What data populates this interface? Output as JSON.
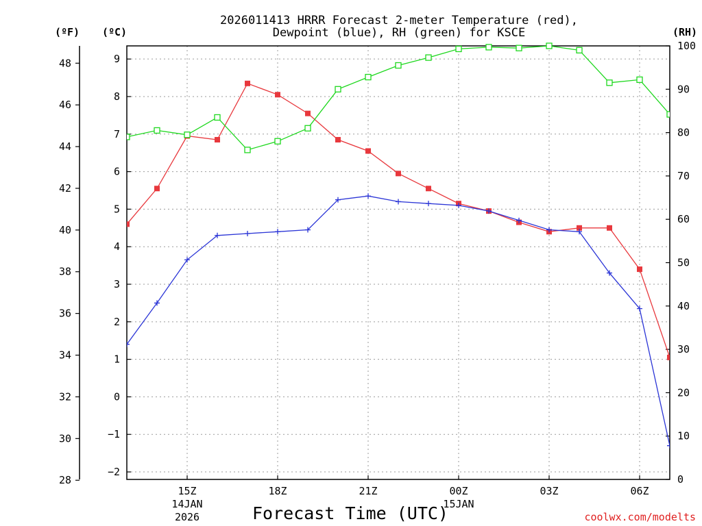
{
  "chart_data": {
    "type": "line",
    "title_line1": "2026011413 HRRR Forecast 2-meter Temperature (red),",
    "title_line2": "Dewpoint (blue), RH (green) for KSCE",
    "xlabel": "Forecast Time (UTC)",
    "credit": "coolwx.com/modelts",
    "units": {
      "fahrenheit": "(ºF)",
      "celsius": "(ºC)",
      "rh": "(RH)"
    },
    "x_hours": [
      13,
      14,
      15,
      16,
      17,
      18,
      19,
      20,
      21,
      22,
      23,
      24,
      25,
      26,
      27,
      28,
      29,
      30,
      31
    ],
    "xlim": [
      13,
      31
    ],
    "x_ticks": [
      {
        "hour": 15,
        "label": "15Z",
        "date1": "14JAN",
        "date2": "2026"
      },
      {
        "hour": 18,
        "label": "18Z",
        "date1": "",
        "date2": ""
      },
      {
        "hour": 21,
        "label": "21Z",
        "date1": "",
        "date2": ""
      },
      {
        "hour": 24,
        "label": "00Z",
        "date1": "15JAN",
        "date2": ""
      },
      {
        "hour": 27,
        "label": "03Z",
        "date1": "",
        "date2": ""
      },
      {
        "hour": 30,
        "label": "06Z",
        "date1": "",
        "date2": ""
      }
    ],
    "celsius_ylim": [
      -2.2,
      9.35
    ],
    "celsius_ticks": [
      -2,
      -1,
      0,
      1,
      2,
      3,
      4,
      5,
      6,
      7,
      8,
      9
    ],
    "celsius_tick_labels": [
      "−2",
      "−1",
      "0",
      "1",
      "2",
      "3",
      "4",
      "5",
      "6",
      "7",
      "8",
      "9"
    ],
    "fahrenheit_ticks": [
      28,
      30,
      32,
      34,
      36,
      38,
      40,
      42,
      44,
      46,
      48
    ],
    "rh_ylim": [
      0,
      100
    ],
    "rh_ticks": [
      0,
      10,
      20,
      30,
      40,
      50,
      60,
      70,
      80,
      90,
      100
    ],
    "series": [
      {
        "name": "Temperature",
        "axis": "celsius",
        "color": "#e8383d",
        "marker": "filled-square",
        "values": [
          4.6,
          5.55,
          6.95,
          6.85,
          8.35,
          8.05,
          7.55,
          6.85,
          6.55,
          5.95,
          5.55,
          5.15,
          4.95,
          4.65,
          4.4,
          4.5,
          4.5,
          3.4,
          1.05
        ]
      },
      {
        "name": "Dewpoint",
        "axis": "celsius",
        "color": "#2a34d6",
        "marker": "plus",
        "values": [
          1.4,
          2.5,
          3.65,
          4.3,
          4.35,
          4.4,
          4.45,
          5.25,
          5.35,
          5.2,
          5.15,
          5.1,
          4.95,
          4.7,
          4.45,
          4.4,
          3.3,
          2.35,
          -1.3
        ]
      },
      {
        "name": "RH",
        "axis": "rh",
        "color": "#1ed81e",
        "marker": "open-square",
        "values": [
          79,
          80.5,
          79.5,
          83.5,
          76,
          78,
          81,
          90,
          92.8,
          95.5,
          97.3,
          99.3,
          99.7,
          99.5,
          100,
          99,
          91.5,
          92.2,
          84.2
        ]
      }
    ]
  }
}
